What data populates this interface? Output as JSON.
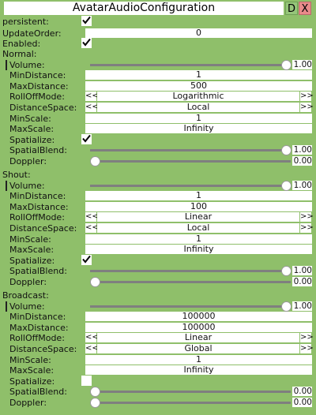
{
  "window": {
    "title": "AvatarAudioConfiguration",
    "d_label": "D",
    "x_label": "X"
  },
  "top": {
    "persistent": {
      "label": "persistent:",
      "checked": true
    },
    "update_order": {
      "label": "UpdateOrder:",
      "value": "0"
    },
    "enabled": {
      "label": "Enabled:",
      "checked": true
    }
  },
  "labels": {
    "volume": "Volume:",
    "min_distance": "MinDistance:",
    "max_distance": "MaxDistance:",
    "rolloff_mode": "RollOffMode:",
    "distance_space": "DistanceSpace:",
    "min_scale": "MinScale:",
    "max_scale": "MaxScale:",
    "spatialize": "Spatialize:",
    "spatial_blend": "SpatialBlend:",
    "doppler": "Doppler:",
    "prev": "<<",
    "next": ">>"
  },
  "sections": [
    {
      "label": "Normal:",
      "volume": {
        "fraction": 1.0,
        "text": "1.00"
      },
      "min_distance": "1",
      "max_distance": "500",
      "rolloff_mode": "Logarithmic",
      "distance_space": "Local",
      "min_scale": "1",
      "max_scale": "Infinity",
      "spatialize": true,
      "spatial_blend": {
        "fraction": 1.0,
        "text": "1.00"
      },
      "doppler": {
        "fraction": 0.0,
        "text": "0.00"
      }
    },
    {
      "label": "Shout:",
      "volume": {
        "fraction": 1.0,
        "text": "1.00"
      },
      "min_distance": "1",
      "max_distance": "100",
      "rolloff_mode": "Linear",
      "distance_space": "Local",
      "min_scale": "1",
      "max_scale": "Infinity",
      "spatialize": true,
      "spatial_blend": {
        "fraction": 1.0,
        "text": "1.00"
      },
      "doppler": {
        "fraction": 0.0,
        "text": "0.00"
      }
    },
    {
      "label": "Broadcast:",
      "volume": {
        "fraction": 1.0,
        "text": "1.00"
      },
      "min_distance": "100000",
      "max_distance": "100000",
      "rolloff_mode": "Linear",
      "distance_space": "Global",
      "min_scale": "1",
      "max_scale": "Infinity",
      "spatialize": false,
      "spatial_blend": {
        "fraction": 0.0,
        "text": "0.00"
      },
      "doppler": {
        "fraction": 0.0,
        "text": "0.00"
      }
    }
  ]
}
